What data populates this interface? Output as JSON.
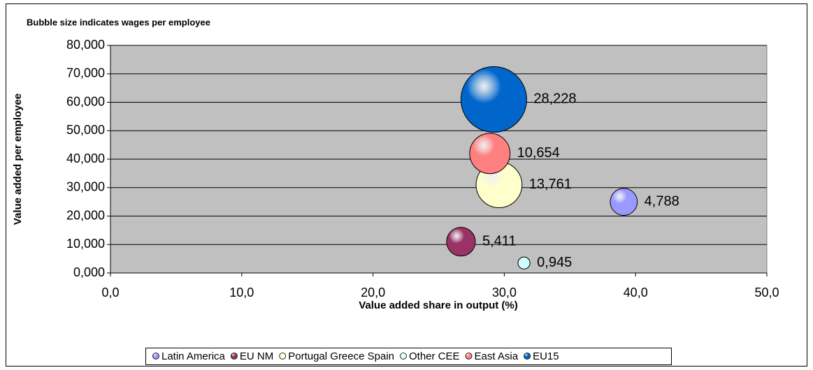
{
  "chart_data": {
    "type": "bubble",
    "title": "Bubble size indicates wages per employee",
    "x_label": "Value added share in output (%)",
    "y_label": "Value added per employee",
    "xlim": [
      0,
      50
    ],
    "xticks": [
      {
        "value": 0,
        "label": "0,0"
      },
      {
        "value": 10,
        "label": "10,0"
      },
      {
        "value": 20,
        "label": "20,0"
      },
      {
        "value": 30,
        "label": "30,0"
      },
      {
        "value": 40,
        "label": "40,0"
      },
      {
        "value": 50,
        "label": "50,0"
      }
    ],
    "ylim": [
      0,
      80
    ],
    "yticks": [
      {
        "value": 0,
        "label": "0,000"
      },
      {
        "value": 10,
        "label": "10,000"
      },
      {
        "value": 20,
        "label": "20,000"
      },
      {
        "value": 30,
        "label": "30,000"
      },
      {
        "value": 40,
        "label": "40,000"
      },
      {
        "value": 50,
        "label": "50,000"
      },
      {
        "value": 60,
        "label": "60,000"
      },
      {
        "value": 70,
        "label": "70,000"
      },
      {
        "value": 80,
        "label": "80,000"
      }
    ],
    "grid": true,
    "legend_position": "bottom",
    "series": [
      {
        "name": "Latin America",
        "color": "#9999ff",
        "x": 39.1,
        "y": 25,
        "size": 4.788,
        "value_label": "4,788"
      },
      {
        "name": "EU NM",
        "color": "#993366",
        "x": 26.7,
        "y": 11,
        "size": 5.411,
        "value_label": "5,411"
      },
      {
        "name": "Portugal Greece Spain",
        "color": "#ffffcc",
        "x": 29.6,
        "y": 31,
        "size": 13.761,
        "value_label": "13,761"
      },
      {
        "name": "Other CEE",
        "color": "#ccffff",
        "x": 31.5,
        "y": 3.5,
        "size": 0.945,
        "value_label": "0,945"
      },
      {
        "name": "East Asia",
        "color": "#ff8080",
        "x": 28.9,
        "y": 42,
        "size": 10.654,
        "value_label": "10,654"
      },
      {
        "name": "EU15",
        "color": "#0066cc",
        "x": 29.2,
        "y": 61,
        "size": 28.228,
        "value_label": "28,228"
      }
    ]
  }
}
